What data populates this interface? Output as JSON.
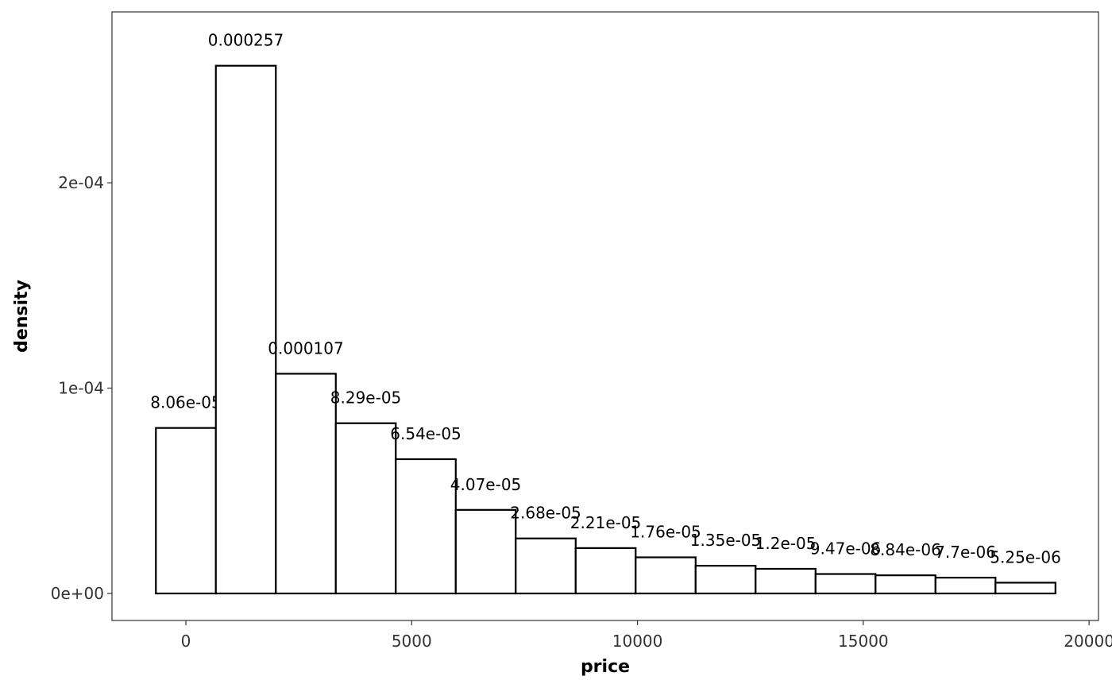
{
  "chart_data": {
    "type": "histogram",
    "x_label": "price",
    "y_label": "density",
    "bins": [
      -664,
      664,
      1992,
      3320,
      4648,
      5976,
      7304,
      8632,
      9960,
      11288,
      12616,
      13944,
      15272,
      16600,
      17928,
      19256
    ],
    "values": [
      8.06e-05,
      0.000257,
      0.000107,
      8.29e-05,
      6.54e-05,
      4.07e-05,
      2.68e-05,
      2.21e-05,
      1.76e-05,
      1.35e-05,
      1.2e-05,
      9.47e-06,
      8.84e-06,
      7.7e-06,
      5.25e-06
    ],
    "value_labels": [
      "8.06e-05",
      "0.000257",
      "0.000107",
      "8.29e-05",
      "6.54e-05",
      "4.07e-05",
      "2.68e-05",
      "2.21e-05",
      "1.76e-05",
      "1.35e-05",
      "1.2e-05",
      "9.47e-06",
      "8.84e-06",
      "7.7e-06",
      "5.25e-06"
    ],
    "color": "#ffffff",
    "edge_color": "#000000",
    "xlim": [
      -1636,
      20209
    ],
    "xticks": [
      0,
      5000,
      10000,
      15000,
      20000
    ],
    "ylim": [
      -1.315e-05,
      0.0002832
    ],
    "yticks": [
      {
        "value": 0,
        "label": "0e+00"
      },
      {
        "value": 0.0001,
        "label": "1e-04"
      },
      {
        "value": 0.0002,
        "label": "2e-04"
      }
    ]
  }
}
